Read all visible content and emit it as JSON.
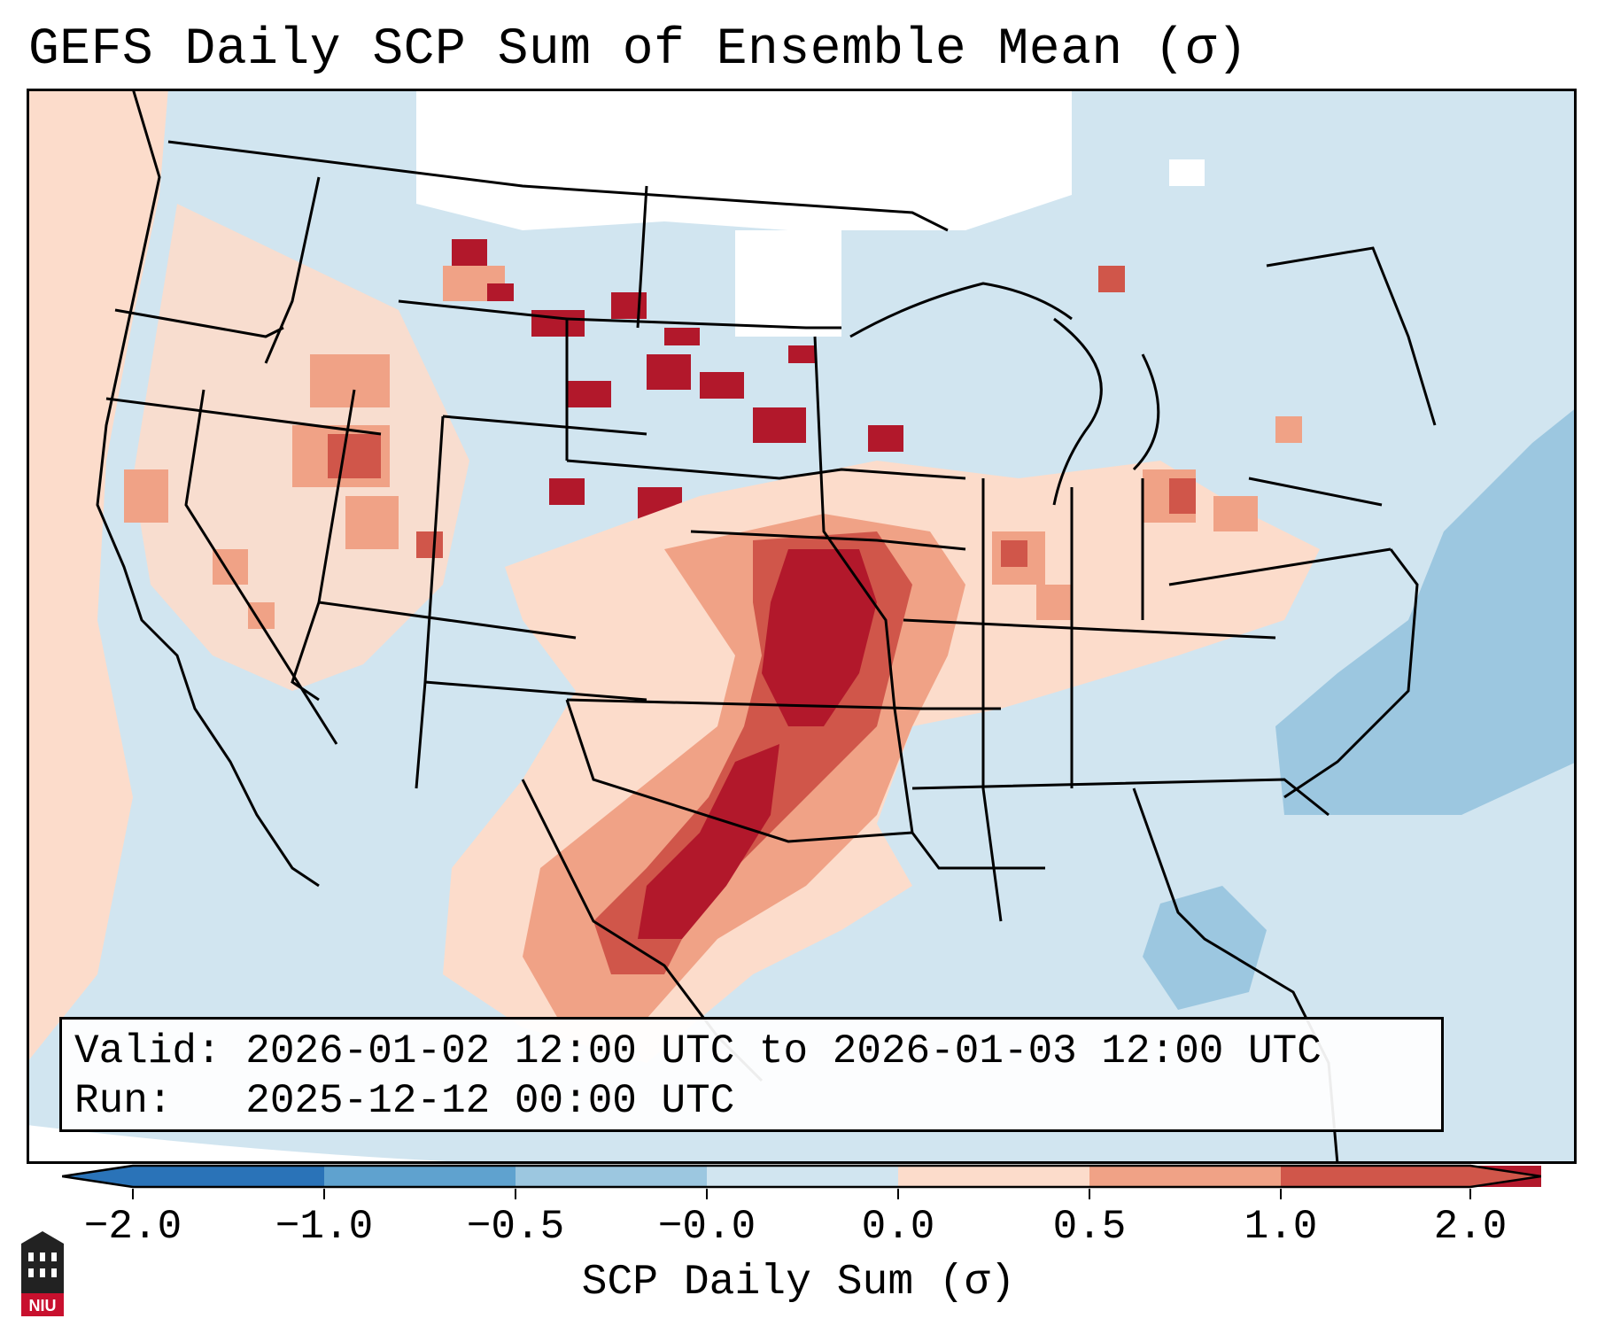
{
  "title": "GEFS Daily SCP Sum of Ensemble Mean (σ)",
  "info": {
    "valid": "Valid: 2026-01-02 12:00 UTC to 2026-01-03 12:00 UTC",
    "run": "Run:   2025-12-12 00:00 UTC"
  },
  "colorbar": {
    "label": "SCP Daily Sum (σ)",
    "ticks": [
      "−2.0",
      "−1.0",
      "−0.5",
      "−0.0",
      "0.0",
      "0.5",
      "1.0",
      "2.0"
    ],
    "colors": [
      "#2a73b8",
      "#5fa2cf",
      "#9cc7e0",
      "#d1e5f0",
      "#fcdccb",
      "#f0a286",
      "#d0564a",
      "#b2182b"
    ]
  },
  "logo_text": "NIU"
}
